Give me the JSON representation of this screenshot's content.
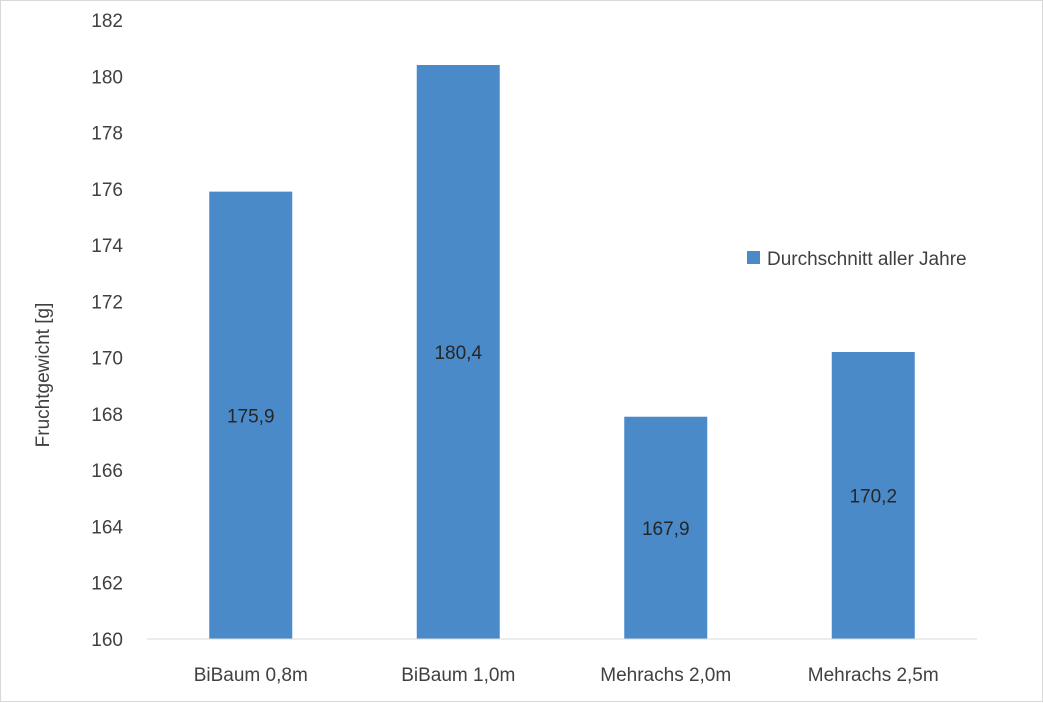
{
  "chart_data": {
    "type": "bar",
    "categories": [
      "BiBaum 0,8m",
      "BiBaum 1,0m",
      "Mehrachs 2,0m",
      "Mehrachs 2,5m"
    ],
    "series": [
      {
        "name": "Durchschnitt aller Jahre",
        "values": [
          175.9,
          180.4,
          167.9,
          170.2
        ],
        "data_labels": [
          "175,9",
          "180,4",
          "167,9",
          "170,2"
        ],
        "color": "#4a8ac9"
      }
    ],
    "ylabel": "Fruchtgewicht [g]",
    "xlabel": "",
    "ylim": [
      160,
      182
    ],
    "yticks": [
      "160",
      "162",
      "164",
      "166",
      "168",
      "170",
      "172",
      "174",
      "176",
      "178",
      "180",
      "182"
    ],
    "grid": false,
    "legend_position": "right"
  }
}
